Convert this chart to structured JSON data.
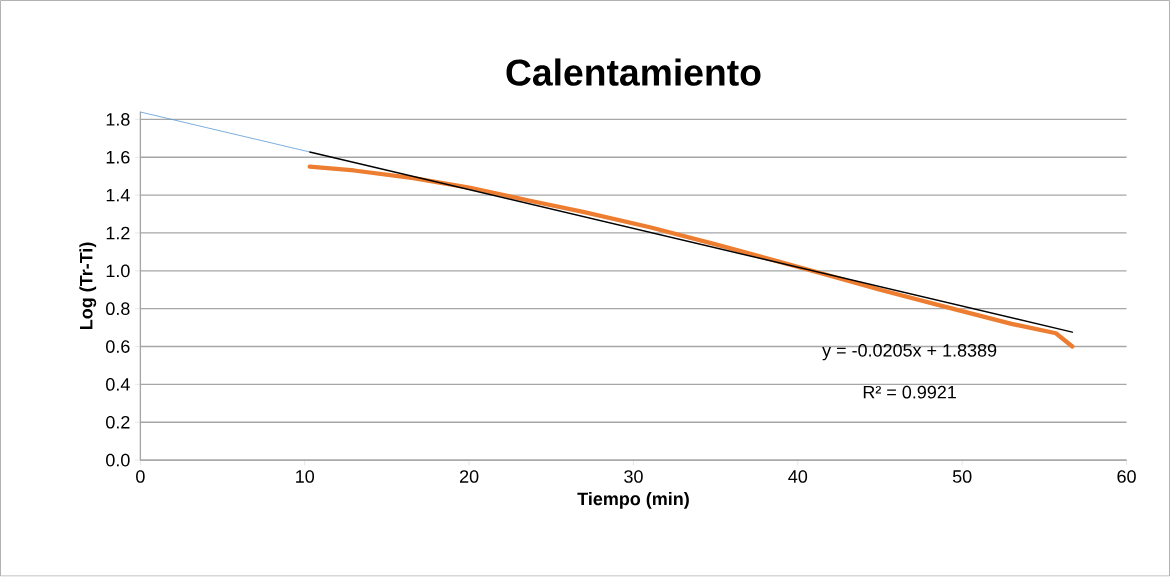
{
  "chart_data": {
    "type": "line",
    "title": "Calentamiento",
    "xlabel": "Tiempo (min)",
    "ylabel": "Log (Tr-Ti)",
    "xlim": [
      0,
      60
    ],
    "xticks": [
      0,
      10,
      20,
      30,
      40,
      50,
      60
    ],
    "ylim": [
      0,
      1.84
    ],
    "yticks": [
      {
        "value": 0,
        "label": "0.0"
      },
      0.2,
      0.4,
      0.6,
      0.8,
      {
        "value": 1,
        "label": "1.0"
      },
      1.2,
      1.4,
      1.6,
      1.8
    ],
    "grid": "y",
    "marker": "none",
    "line_style": "solid",
    "annotations": [
      "y = -0.0205x + 1.8389",
      "R² = 0.9921"
    ],
    "series": [
      {
        "color": "#ed7d31",
        "x": [
          10.3,
          13,
          16.6,
          20,
          23.7,
          27,
          31,
          35,
          41.3,
          45,
          49.4,
          53,
          55.7,
          56.7
        ],
        "values": [
          1.55,
          1.53,
          1.49,
          1.44,
          1.37,
          1.31,
          1.23,
          1.14,
          0.99,
          0.9,
          0.8,
          0.72,
          0.67,
          0.6
        ]
      },
      {
        "color": "#000000",
        "x": [
          10.3,
          56.7
        ],
        "values": [
          1.628,
          0.676
        ]
      },
      {
        "color": "#5b9bd5",
        "x": [
          0,
          10.3
        ],
        "values": [
          1.839,
          1.628
        ]
      }
    ]
  }
}
